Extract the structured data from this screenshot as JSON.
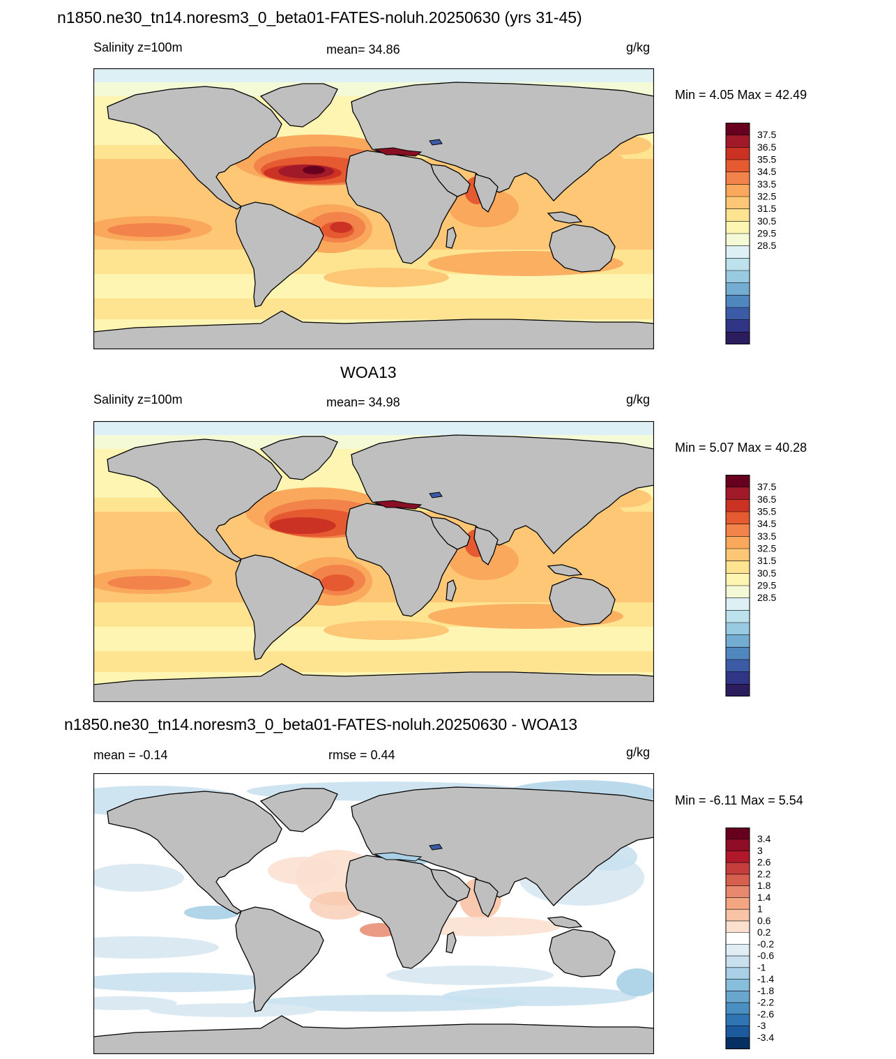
{
  "panels": [
    {
      "title": "n1850.ne30_tn14.noresm3_0_beta01-FATES-noluh.20250630 (yrs 31-45)",
      "left_label": "Salinity z=100m",
      "center_label": "mean=  34.86",
      "units": "g/kg",
      "minmax": "Min =   4.05 Max =  42.49",
      "colorbar": {
        "labels": [
          "37.5",
          "36.5",
          "35.5",
          "34.5",
          "33.5",
          "32.5",
          "31.5",
          "30.5",
          "29.5",
          "28.5"
        ],
        "colors": [
          "#67001f",
          "#a11a2a",
          "#cc3224",
          "#e55a30",
          "#f2844b",
          "#f9a85c",
          "#fdc775",
          "#fee390",
          "#fff5b2",
          "#f3fad5",
          "#dcf0f5",
          "#bde2ee",
          "#98cbe2",
          "#74add1",
          "#5087bf",
          "#3c5ba6",
          "#303585",
          "#2c1e5e"
        ]
      },
      "icon": "world-map-salinity-model"
    },
    {
      "title": "WOA13",
      "left_label": "Salinity z=100m",
      "center_label": "mean=  34.98",
      "units": "g/kg",
      "minmax": "Min =   5.07 Max =  40.28",
      "colorbar": {
        "labels": [
          "37.5",
          "36.5",
          "35.5",
          "34.5",
          "33.5",
          "32.5",
          "31.5",
          "30.5",
          "29.5",
          "28.5"
        ],
        "colors": [
          "#67001f",
          "#a11a2a",
          "#cc3224",
          "#e55a30",
          "#f2844b",
          "#f9a85c",
          "#fdc775",
          "#fee390",
          "#fff5b2",
          "#f3fad5",
          "#dcf0f5",
          "#bde2ee",
          "#98cbe2",
          "#74add1",
          "#5087bf",
          "#3c5ba6",
          "#303585",
          "#2c1e5e"
        ]
      },
      "icon": "world-map-salinity-observed"
    },
    {
      "title": "n1850.ne30_tn14.noresm3_0_beta01-FATES-noluh.20250630 - WOA13",
      "left_label": "mean =  -0.14",
      "center_label": "rmse =   0.44",
      "units": "g/kg",
      "minmax": "Min =  -6.11 Max =   5.54",
      "colorbar": {
        "labels": [
          "3.4",
          "3",
          "2.6",
          "2.2",
          "1.8",
          "1.4",
          "1",
          "0.6",
          "0.2",
          "-0.2",
          "-0.6",
          "-1",
          "-1.4",
          "-1.8",
          "-2.2",
          "-2.6",
          "-3",
          "-3.4"
        ],
        "colors": [
          "#67001f",
          "#8f0d27",
          "#b2182b",
          "#c53e3d",
          "#d6604d",
          "#e8896f",
          "#f4a582",
          "#f8c3a6",
          "#fbe0d0",
          "#ffffff",
          "#e1edf5",
          "#c9e1ef",
          "#a9d0e6",
          "#87bedc",
          "#6aa7cf",
          "#4a8fc2",
          "#2f75b4",
          "#1d5a9d",
          "#053061"
        ]
      },
      "icon": "world-map-salinity-difference"
    }
  ]
}
